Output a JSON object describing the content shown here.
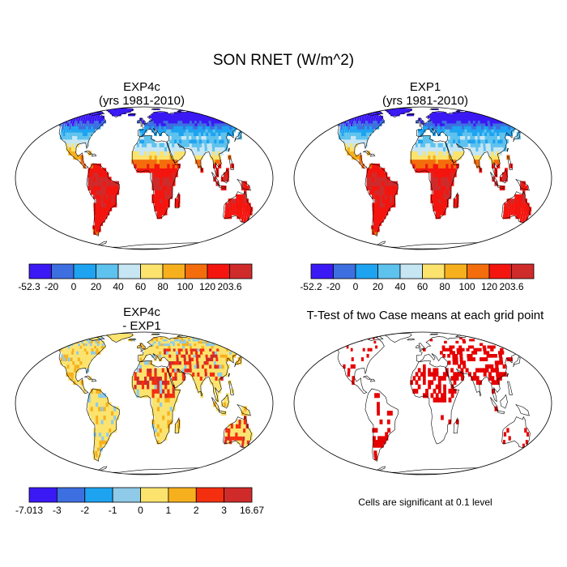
{
  "title": "SON RNET (W/m^2)",
  "panels": [
    {
      "id": "exp4c",
      "title_line1": "EXP4c",
      "title_line2": "(yrs 1981-2010)",
      "field": "rnet"
    },
    {
      "id": "exp1",
      "title_line1": "EXP1",
      "title_line2": "(yrs 1981-2010)",
      "field": "rnet"
    },
    {
      "id": "diff",
      "title_line1": "EXP4c",
      "title_line2": "- EXP1",
      "field": "diff"
    },
    {
      "id": "ttest",
      "title_line1": "T-Test of two Case means at each grid point",
      "title_line2": "",
      "field": "ttest"
    }
  ],
  "colorbars": [
    {
      "id": "cb-exp4c",
      "labels": [
        "-52.3",
        "-20",
        "0",
        "20",
        "40",
        "60",
        "80",
        "100",
        "120",
        "203.6"
      ],
      "colors": [
        "#3a19f5",
        "#3d6fe0",
        "#1ea3f0",
        "#5ec2ee",
        "#c6e6f4",
        "#fbe36e",
        "#f7b01d",
        "#f46d0d",
        "#f4150f",
        "#cf2b2b"
      ]
    },
    {
      "id": "cb-exp1",
      "labels": [
        "-52.2",
        "-20",
        "0",
        "20",
        "40",
        "60",
        "80",
        "100",
        "120",
        "203.6"
      ],
      "colors": [
        "#3a19f5",
        "#3d6fe0",
        "#1ea3f0",
        "#5ec2ee",
        "#c6e6f4",
        "#fbe36e",
        "#f7b01d",
        "#f46d0d",
        "#f4150f",
        "#cf2b2b"
      ]
    },
    {
      "id": "cb-diff",
      "labels": [
        "-7.013",
        "-3",
        "-2",
        "-1",
        "0",
        "1",
        "2",
        "3",
        "16.67"
      ],
      "colors": [
        "#3a19f5",
        "#3d6fe0",
        "#1ea3f0",
        "#8fcbe8",
        "#fbe36e",
        "#f7b01d",
        "#f42f0f",
        "#cf2b2b"
      ]
    }
  ],
  "significance_note": "Cells are significant at 0.1 level",
  "significance_color": "#e60000"
}
